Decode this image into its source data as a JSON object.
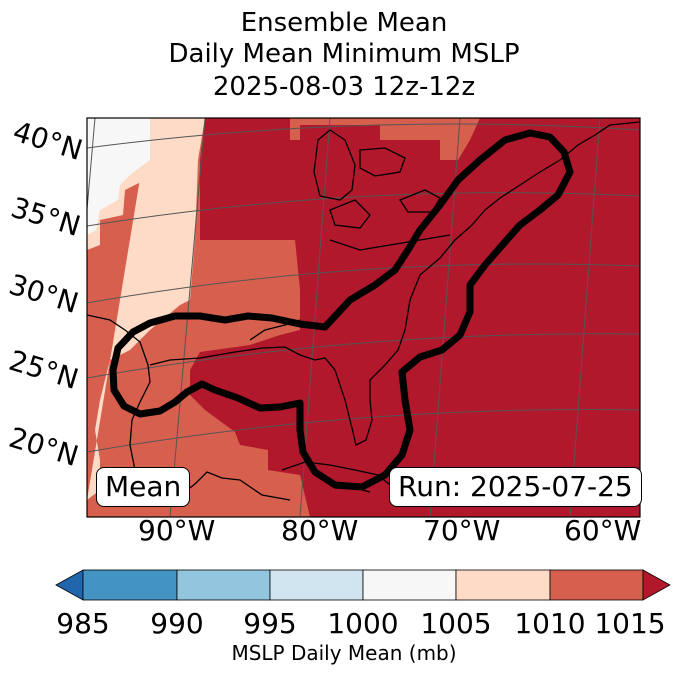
{
  "title": {
    "line1": "Ensemble Mean",
    "line2": "Daily Mean Minimum MSLP",
    "line3": "2025-08-03 12z-12z"
  },
  "map": {
    "lat_labels": [
      "40°N",
      "35°N",
      "30°N",
      "25°N",
      "20°N"
    ],
    "lon_labels": [
      "90°W",
      "80°W",
      "70°W",
      "60°W"
    ],
    "mean_label": "Mean",
    "run_label": "Run: 2025-07-25"
  },
  "colorbar": {
    "ticks": [
      "985",
      "990",
      "995",
      "1000",
      "1005",
      "1010",
      "1015"
    ],
    "label": "MSLP Daily Mean (mb)",
    "colors": {
      "under": "#2166ac",
      "c985_990": "#4393c3",
      "c990_995": "#92c5de",
      "c995_1000": "#d1e5f0",
      "c1000_1005": "#f7f7f7",
      "c1005_1010": "#fddbc7",
      "c1010_1015": "#d6604d",
      "over": "#b2182b"
    }
  }
}
